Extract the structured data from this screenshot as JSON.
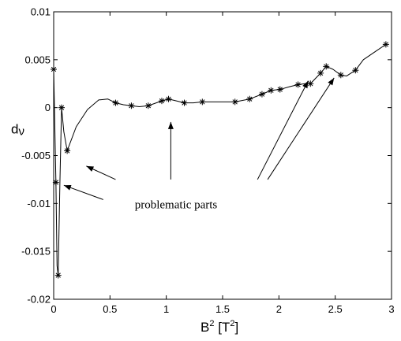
{
  "chart_data": {
    "type": "line",
    "ylabel": "d",
    "ylabel_sub": "ν",
    "xlabel_base": "B",
    "xlabel_sup": "2",
    "xlabel_unit_open": " [T",
    "xlabel_unit_sup": "2",
    "xlabel_unit_close": "]",
    "xlim": [
      0,
      3
    ],
    "ylim": [
      -0.02,
      0.01
    ],
    "xticks": [
      {
        "value": 0,
        "label": "0"
      },
      {
        "value": 0.5,
        "label": "0.5"
      },
      {
        "value": 1,
        "label": "1"
      },
      {
        "value": 1.5,
        "label": "1.5"
      },
      {
        "value": 2,
        "label": "2"
      },
      {
        "value": 2.5,
        "label": "2.5"
      },
      {
        "value": 3,
        "label": "3"
      }
    ],
    "yticks": [
      {
        "value": -0.02,
        "label": "-0.02"
      },
      {
        "value": -0.015,
        "label": "-0.015"
      },
      {
        "value": -0.01,
        "label": "-0.01"
      },
      {
        "value": -0.005,
        "label": "-0.005"
      },
      {
        "value": 0,
        "label": "0"
      },
      {
        "value": 0.005,
        "label": "0.005"
      },
      {
        "value": 0.01,
        "label": "0.01"
      }
    ],
    "grid": false,
    "series": [
      {
        "marker": "asterisk",
        "line_color": "#000000",
        "points": [
          {
            "x": 0.0,
            "y": 0.004
          },
          {
            "x": 0.02,
            "y": -0.0078
          },
          {
            "x": 0.04,
            "y": -0.0175
          },
          {
            "x": 0.07,
            "y": 0.0
          },
          {
            "x": 0.12,
            "y": -0.0045
          },
          {
            "x": 0.55,
            "y": 0.0005
          },
          {
            "x": 0.69,
            "y": 0.0002
          },
          {
            "x": 0.84,
            "y": 0.0002
          },
          {
            "x": 0.96,
            "y": 0.0007
          },
          {
            "x": 1.02,
            "y": 0.0009
          },
          {
            "x": 1.16,
            "y": 0.0005
          },
          {
            "x": 1.32,
            "y": 0.0006
          },
          {
            "x": 1.61,
            "y": 0.0006
          },
          {
            "x": 1.74,
            "y": 0.0009
          },
          {
            "x": 1.85,
            "y": 0.0014
          },
          {
            "x": 1.93,
            "y": 0.0018
          },
          {
            "x": 2.01,
            "y": 0.0019
          },
          {
            "x": 2.17,
            "y": 0.0024
          },
          {
            "x": 2.28,
            "y": 0.0025
          },
          {
            "x": 2.37,
            "y": 0.0036
          },
          {
            "x": 2.42,
            "y": 0.0043
          },
          {
            "x": 2.55,
            "y": 0.0034
          },
          {
            "x": 2.68,
            "y": 0.0039
          },
          {
            "x": 2.95,
            "y": 0.0066
          }
        ],
        "curve": [
          [
            0.0,
            0.004
          ],
          [
            0.02,
            -0.0078
          ],
          [
            0.03,
            -0.0165
          ],
          [
            0.04,
            -0.0175
          ],
          [
            0.055,
            -0.008
          ],
          [
            0.07,
            0.0
          ],
          [
            0.09,
            -0.0025
          ],
          [
            0.12,
            -0.0045
          ],
          [
            0.2,
            -0.002
          ],
          [
            0.3,
            -0.0002
          ],
          [
            0.4,
            0.0008
          ],
          [
            0.48,
            0.0009
          ],
          [
            0.55,
            0.0005
          ],
          [
            0.62,
            0.0003
          ],
          [
            0.69,
            0.0002
          ],
          [
            0.76,
            0.0001
          ],
          [
            0.84,
            0.0002
          ],
          [
            0.96,
            0.0007
          ],
          [
            1.02,
            0.0009
          ],
          [
            1.09,
            0.0007
          ],
          [
            1.16,
            0.0005
          ],
          [
            1.24,
            0.0005
          ],
          [
            1.32,
            0.0006
          ],
          [
            1.45,
            0.0006
          ],
          [
            1.61,
            0.0006
          ],
          [
            1.74,
            0.0009
          ],
          [
            1.85,
            0.0014
          ],
          [
            1.93,
            0.0018
          ],
          [
            2.01,
            0.0019
          ],
          [
            2.1,
            0.0022
          ],
          [
            2.17,
            0.0024
          ],
          [
            2.23,
            0.0025
          ],
          [
            2.28,
            0.0025
          ],
          [
            2.37,
            0.0036
          ],
          [
            2.42,
            0.0043
          ],
          [
            2.48,
            0.004
          ],
          [
            2.55,
            0.0034
          ],
          [
            2.6,
            0.0033
          ],
          [
            2.68,
            0.0039
          ],
          [
            2.75,
            0.005
          ],
          [
            2.85,
            0.0058
          ],
          [
            2.95,
            0.0066
          ]
        ]
      }
    ],
    "annotations": [
      {
        "text": "problematic parts",
        "text_at": [
          0.72,
          -0.0105
        ],
        "arrows": [
          {
            "from": [
              0.44,
              -0.0096
            ],
            "to": [
              0.09,
              -0.0081
            ]
          },
          {
            "from": [
              0.55,
              -0.0075
            ],
            "to": [
              0.29,
              -0.0061
            ]
          },
          {
            "from": [
              1.04,
              -0.0075
            ],
            "to": [
              1.04,
              -0.0015
            ]
          },
          {
            "from": [
              1.81,
              -0.0075
            ],
            "to": [
              2.26,
              0.0028
            ]
          },
          {
            "from": [
              1.9,
              -0.0075
            ],
            "to": [
              2.49,
              0.0031
            ]
          }
        ]
      }
    ]
  }
}
